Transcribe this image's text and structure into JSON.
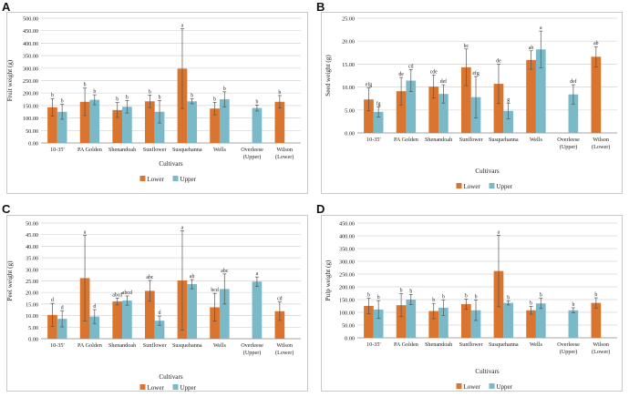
{
  "colors": {
    "lower": "#d9752f",
    "upper": "#79b9c8",
    "grid": "#d4d4d4",
    "axis": "#888888",
    "error": "#555555"
  },
  "chart_data": [
    {
      "panel": "A",
      "type": "bar",
      "ylabel": "Fruit weight (g)",
      "xlabel": "Cultivars",
      "ylim": [
        0,
        500
      ],
      "ytick_step": 50,
      "ytick_labels": [
        "0.00",
        "50.00",
        "100.00",
        "150.00",
        "200.00",
        "250.00",
        "300.00",
        "350.00",
        "400.00",
        "450.00",
        "500.00"
      ],
      "categories": [
        "10-35'",
        "PA Golden",
        "Shenandoah",
        "Sunflower",
        "Susquehanna",
        "Wells",
        "Overleese (Upper)",
        "Wilson (Lower)"
      ],
      "series": [
        {
          "name": "Lower",
          "values": [
            143,
            165,
            132,
            167,
            298,
            138,
            null,
            165
          ],
          "errors": [
            35,
            55,
            30,
            25,
            160,
            25,
            null,
            25
          ],
          "letters": [
            "b",
            "b",
            "b",
            "b",
            "a",
            "b",
            "",
            "b"
          ]
        },
        {
          "name": "Upper",
          "values": [
            125,
            173,
            145,
            125,
            167,
            175,
            140,
            null
          ],
          "errors": [
            30,
            20,
            25,
            45,
            10,
            30,
            12,
            null
          ],
          "letters": [
            "b",
            "b",
            "b",
            "b",
            "b",
            "b",
            "b",
            ""
          ]
        }
      ],
      "legend": [
        "Lower",
        "Upper"
      ]
    },
    {
      "panel": "B",
      "type": "bar",
      "ylabel": "Seed weight (g)",
      "xlabel": "Cultivars",
      "ylim": [
        0,
        25
      ],
      "ytick_step": 5,
      "ytick_labels": [
        "0.00",
        "5.00",
        "10.00",
        "15.00",
        "20.00",
        "25.00"
      ],
      "categories": [
        "10-35'",
        "PA Golden",
        "Shenandoah",
        "Sunflower",
        "Susquehanna",
        "Wells",
        "Overleese (Upper)",
        "Wilson (Lower)"
      ],
      "series": [
        {
          "name": "Lower",
          "values": [
            7.3,
            9.1,
            10.1,
            14.3,
            10.7,
            15.9,
            null,
            16.6
          ],
          "errors": [
            2.5,
            3.0,
            2.5,
            4.0,
            4.3,
            2.0,
            null,
            2.2
          ],
          "letters": [
            "efg",
            "de",
            "cde",
            "bc",
            "de",
            "ab",
            "",
            "ab"
          ]
        },
        {
          "name": "Upper",
          "values": [
            4.6,
            11.4,
            8.5,
            7.8,
            4.8,
            18.2,
            8.4,
            null
          ],
          "errors": [
            1.1,
            2.4,
            2.0,
            4.5,
            1.7,
            4.0,
            2.1,
            null
          ],
          "letters": [
            "fg",
            "cd",
            "def",
            "efg",
            "g",
            "a",
            "def",
            ""
          ]
        }
      ],
      "legend": [
        "Lower",
        "Upper"
      ]
    },
    {
      "panel": "C",
      "type": "bar",
      "ylabel": "Peel weight (g)",
      "xlabel": "Cultivars",
      "ylim": [
        0,
        50
      ],
      "ytick_step": 5,
      "ytick_labels": [
        "0.00",
        "5.00",
        "10.00",
        "15.00",
        "20.00",
        "25.00",
        "30.00",
        "35.00",
        "40.00",
        "45.00",
        "50.00"
      ],
      "categories": [
        "10-35'",
        "PA Golden",
        "Shenandoah",
        "Sunflower",
        "Susquehanna",
        "Wells",
        "Overleese (Upper)",
        "Wilson (Lower)"
      ],
      "series": [
        {
          "name": "Lower",
          "values": [
            10.3,
            26.2,
            16.1,
            20.7,
            25.2,
            13.6,
            null,
            11.9
          ],
          "errors": [
            5.0,
            18.5,
            1.5,
            4.5,
            21.5,
            6.0,
            null,
            4.0
          ],
          "letters": [
            "d",
            "a",
            "abcd",
            "abc",
            "a",
            "bcd",
            "",
            "cd"
          ]
        },
        {
          "name": "Upper",
          "values": [
            8.6,
            9.6,
            16.5,
            7.8,
            23.6,
            21.5,
            24.7,
            null
          ],
          "errors": [
            3.5,
            3.0,
            2.0,
            2.0,
            2.0,
            6.5,
            2.0,
            null
          ],
          "letters": [
            "d",
            "d",
            "abcd",
            "d",
            "ab",
            "abc",
            "a",
            ""
          ]
        }
      ],
      "legend": [
        "Lower",
        "Upper"
      ]
    },
    {
      "panel": "D",
      "type": "bar",
      "ylabel": "Pulp weight (g)",
      "xlabel": "Cultivars",
      "ylim": [
        0,
        450
      ],
      "ytick_step": 50,
      "ytick_labels": [
        "0.00",
        "50.00",
        "100.00",
        "150.00",
        "200.00",
        "250.00",
        "300.00",
        "350.00",
        "400.00",
        "450.00"
      ],
      "categories": [
        "10-35'",
        "PA Golden",
        "Shenandoah",
        "Sunflower",
        "Susquehanna",
        "Wells",
        "Overleese (Upper)",
        "Wilson (Lower)"
      ],
      "series": [
        {
          "name": "Lower",
          "values": [
            125,
            128,
            105,
            132,
            262,
            108,
            null,
            137
          ],
          "errors": [
            30,
            45,
            30,
            20,
            140,
            15,
            null,
            20
          ],
          "letters": [
            "b",
            "b",
            "b",
            "b",
            "a",
            "b",
            "",
            "b"
          ]
        },
        {
          "name": "Upper",
          "values": [
            111,
            150,
            118,
            108,
            137,
            135,
            108,
            null
          ],
          "errors": [
            35,
            20,
            30,
            40,
            8,
            20,
            10,
            null
          ],
          "letters": [
            "b",
            "b",
            "b",
            "b",
            "b",
            "b",
            "b",
            ""
          ]
        }
      ],
      "legend": [
        "Lower",
        "Upper"
      ]
    }
  ]
}
